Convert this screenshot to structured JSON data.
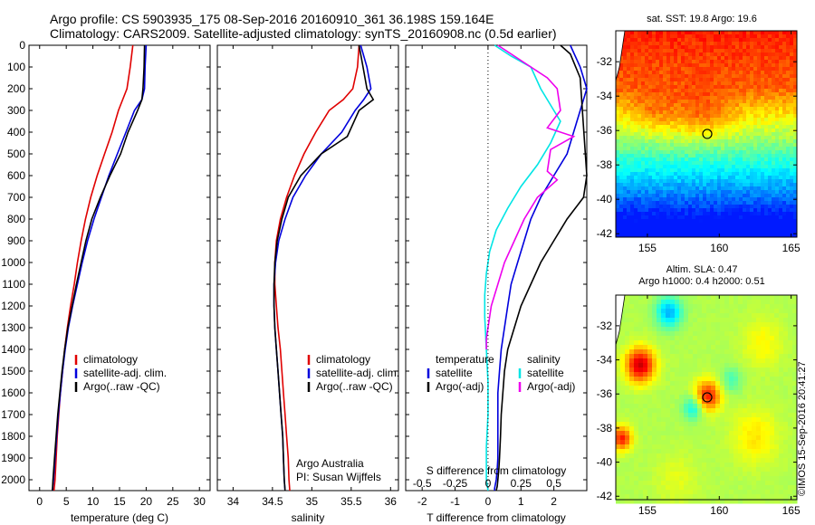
{
  "header": {
    "line1": "Argo profile: CS 5903935_175 08-Sep-2016 20160910_361 36.198S 159.164E",
    "line2": "Climatology: CARS2009. Satellite-adjusted climatology: synTS_20160908.nc (0.5d earlier)"
  },
  "colors": {
    "climatology": "#e00000",
    "satellite": "#0000dd",
    "argo": "#000000",
    "sat_salinity": "#00e5e5",
    "argo_salinity": "#ee00ee"
  },
  "chart_data": [
    {
      "type": "line",
      "panel": "temperature",
      "xlabel": "temperature (deg C)",
      "ylabel": "",
      "xlim": [
        -2,
        32
      ],
      "xticks": [
        0,
        5,
        10,
        15,
        20,
        25,
        30
      ],
      "ylim": [
        0,
        2050
      ],
      "yticks": [
        0,
        100,
        200,
        300,
        400,
        500,
        600,
        700,
        800,
        900,
        1000,
        1100,
        1200,
        1300,
        1400,
        1500,
        1600,
        1700,
        1800,
        1900,
        2000
      ],
      "legend": [
        "climatology",
        "satellite-adj. clim.",
        "Argo(..raw -QC)"
      ],
      "series": [
        {
          "name": "climatology",
          "color": "#e00000",
          "x": [
            17.5,
            17.0,
            16.4,
            15.6,
            14.8,
            13.6,
            12.2,
            10.8,
            9.6,
            8.6,
            7.8,
            7.1,
            6.5,
            5.8,
            5.2,
            4.7,
            4.3,
            3.9,
            3.6,
            3.3,
            3.1,
            2.9,
            2.7
          ],
          "y": [
            0,
            100,
            200,
            250,
            300,
            400,
            500,
            600,
            700,
            800,
            900,
            1000,
            1100,
            1200,
            1300,
            1400,
            1500,
            1600,
            1700,
            1800,
            1900,
            2000,
            2050
          ]
        },
        {
          "name": "satellite-adj. clim.",
          "color": "#0000dd",
          "x": [
            20.0,
            19.8,
            19.7,
            19.2,
            17.8,
            16.2,
            14.6,
            13.0,
            11.6,
            10.2,
            9.0,
            8.0,
            7.1,
            6.2,
            5.4,
            4.8,
            4.3,
            3.9,
            3.5,
            3.2,
            2.9,
            2.6,
            2.4
          ],
          "y": [
            0,
            100,
            200,
            250,
            300,
            400,
            500,
            600,
            700,
            800,
            900,
            1000,
            1100,
            1200,
            1300,
            1400,
            1500,
            1600,
            1700,
            1800,
            1900,
            2000,
            2050
          ]
        },
        {
          "name": "Argo(..raw -QC)",
          "color": "#000000",
          "x": [
            19.7,
            19.6,
            19.4,
            19.2,
            18.4,
            16.6,
            15.2,
            13.2,
            11.4,
            9.8,
            8.7,
            7.8,
            6.9,
            6.1,
            5.3,
            4.7,
            4.2,
            3.8,
            3.4,
            3.1,
            2.8,
            2.5,
            2.4
          ],
          "y": [
            0,
            100,
            200,
            250,
            300,
            400,
            500,
            600,
            700,
            800,
            900,
            1000,
            1100,
            1200,
            1300,
            1400,
            1500,
            1600,
            1700,
            1800,
            1900,
            2000,
            2050
          ]
        }
      ]
    },
    {
      "type": "line",
      "panel": "salinity",
      "xlabel": "salinity",
      "ylabel": "",
      "xlim": [
        33.8,
        36.1
      ],
      "xticks": [
        34,
        34.5,
        35,
        35.5,
        36
      ],
      "ylim": [
        0,
        2050
      ],
      "legend": [
        "climatology",
        "satellite-adj. clim.",
        "Argo(..raw -QC)"
      ],
      "annotation": [
        "Argo Australia",
        "PI: Susan Wijffels"
      ],
      "series": [
        {
          "name": "climatology",
          "color": "#e00000",
          "x": [
            35.6,
            35.58,
            35.52,
            35.4,
            35.22,
            35.05,
            34.9,
            34.78,
            34.68,
            34.6,
            34.55,
            34.53,
            34.53,
            34.55,
            34.57,
            34.6,
            34.62,
            34.64,
            34.66,
            34.68,
            34.7,
            34.71,
            34.72
          ],
          "y": [
            0,
            100,
            200,
            250,
            300,
            400,
            500,
            600,
            700,
            800,
            900,
            1000,
            1100,
            1200,
            1300,
            1400,
            1500,
            1600,
            1700,
            1800,
            1900,
            2000,
            2050
          ]
        },
        {
          "name": "satellite-adj. clim.",
          "color": "#0000dd",
          "x": [
            35.62,
            35.7,
            35.75,
            35.66,
            35.55,
            35.38,
            35.12,
            34.92,
            34.76,
            34.66,
            34.58,
            34.54,
            34.52,
            34.52,
            34.53,
            34.55,
            34.57,
            34.59,
            34.61,
            34.63,
            34.64,
            34.65,
            34.66
          ],
          "y": [
            0,
            100,
            200,
            250,
            300,
            400,
            500,
            600,
            700,
            800,
            900,
            1000,
            1100,
            1200,
            1300,
            1400,
            1500,
            1600,
            1700,
            1800,
            1900,
            2000,
            2050
          ]
        },
        {
          "name": "Argo(..raw -QC)",
          "color": "#000000",
          "x": [
            35.6,
            35.65,
            35.7,
            35.78,
            35.6,
            35.45,
            35.12,
            34.86,
            34.7,
            34.62,
            34.56,
            34.53,
            34.52,
            34.52,
            34.53,
            34.55,
            34.57,
            34.59,
            34.61,
            34.63,
            34.64,
            34.65,
            34.66
          ],
          "y": [
            0,
            100,
            200,
            250,
            300,
            420,
            500,
            600,
            700,
            800,
            900,
            1000,
            1100,
            1200,
            1300,
            1400,
            1500,
            1600,
            1700,
            1800,
            1900,
            2000,
            2050
          ]
        }
      ]
    },
    {
      "type": "line",
      "panel": "difference",
      "xlabel": "T difference from climatology",
      "xlabel_top": "S difference from climatology",
      "xlim": [
        -2.5,
        3.0
      ],
      "xticks": [
        -2,
        -1,
        0,
        1,
        2
      ],
      "xticks_top_labels": [
        "-0.5",
        "-0.25",
        "0",
        "0.25",
        "0.5"
      ],
      "xticks_top_positions": [
        -2,
        -1,
        0,
        1,
        2
      ],
      "ylim": [
        0,
        2050
      ],
      "legend_left": [
        "temperature",
        "satellite",
        "Argo(-adj)"
      ],
      "legend_right": [
        "salinity",
        "satellite",
        "Argo(-adj)"
      ],
      "series": [
        {
          "name": "satellite",
          "color": "#0000dd",
          "x": [
            2.5,
            2.8,
            3.0,
            2.4,
            2.0,
            1.6,
            1.3,
            1.1,
            0.9,
            0.7,
            0.6,
            0.5,
            0.4,
            0.35,
            0.3,
            0.3,
            0.3,
            0.3,
            0.28,
            0.25,
            0.2,
            0.2
          ],
          "y": [
            0,
            100,
            200,
            500,
            600,
            700,
            800,
            900,
            1000,
            1100,
            1200,
            1300,
            1400,
            1500,
            1600,
            1700,
            1800,
            1900,
            1950,
            2000,
            2040,
            2050
          ]
        },
        {
          "name": "Argo(-adj)",
          "color": "#000000",
          "x": [
            2.2,
            2.5,
            2.8,
            3.0,
            2.9,
            2.4,
            2.0,
            1.6,
            1.3,
            1.0,
            0.8,
            0.6,
            0.5,
            0.45,
            0.4,
            0.38,
            0.35,
            0.33,
            0.3,
            0.28,
            0.25
          ],
          "y": [
            0,
            40,
            150,
            600,
            700,
            800,
            900,
            1000,
            1100,
            1200,
            1300,
            1400,
            1500,
            1600,
            1700,
            1800,
            1900,
            1950,
            2000,
            2030,
            2050
          ]
        },
        {
          "name": "satellite (salinity)",
          "color": "#00e5e5",
          "x": [
            0.2,
            0.7,
            1.3,
            1.6,
            2.0,
            2.2,
            1.9,
            1.5,
            1.0,
            0.6,
            0.25,
            0.05,
            -0.05,
            -0.1,
            -0.1,
            -0.05,
            0.0,
            0.0,
            -0.05,
            -0.05,
            0.0
          ],
          "y": [
            0,
            50,
            100,
            200,
            300,
            350,
            450,
            550,
            650,
            750,
            850,
            950,
            1050,
            1150,
            1250,
            1400,
            1550,
            1700,
            1850,
            2000,
            2050
          ]
        },
        {
          "name": "Argo(-adj) (salinity)",
          "color": "#ee00ee",
          "x": [
            0.3,
            0.8,
            1.3,
            1.8,
            2.1,
            2.2,
            1.8,
            2.6,
            1.9,
            1.8,
            2.1,
            1.5,
            1.1,
            0.8,
            0.5,
            0.3,
            0.1,
            0.0,
            -0.05,
            -0.05
          ],
          "y": [
            0,
            50,
            100,
            150,
            200,
            300,
            380,
            420,
            480,
            580,
            620,
            700,
            800,
            900,
            1000,
            1100,
            1200,
            1300,
            1350,
            1400
          ]
        }
      ]
    },
    {
      "type": "heatmap",
      "panel": "sst_map",
      "title": "sat. SST: 19.8 Argo: 19.6",
      "xlim": [
        152.8,
        165.4
      ],
      "ylim": [
        -42.2,
        -30.2
      ],
      "xticks": [
        155,
        160,
        165
      ],
      "yticks": [
        -42,
        -40,
        -38,
        -36,
        -34,
        -32
      ],
      "marker": {
        "lon": 159.164,
        "lat": -36.198
      }
    },
    {
      "type": "heatmap",
      "panel": "sla_map",
      "title": "Altim. SLA: 0.47",
      "subtitle": "Argo h1000: 0.4 h2000: 0.51",
      "xlim": [
        152.8,
        165.4
      ],
      "ylim": [
        -42.2,
        -30.2
      ],
      "xticks": [
        155,
        160,
        165
      ],
      "yticks": [
        -42,
        -40,
        -38,
        -36,
        -34,
        -32
      ],
      "marker": {
        "lon": 159.164,
        "lat": -36.198
      }
    }
  ],
  "credit": "©IMOS 15-Sep-2016 20:41:27"
}
